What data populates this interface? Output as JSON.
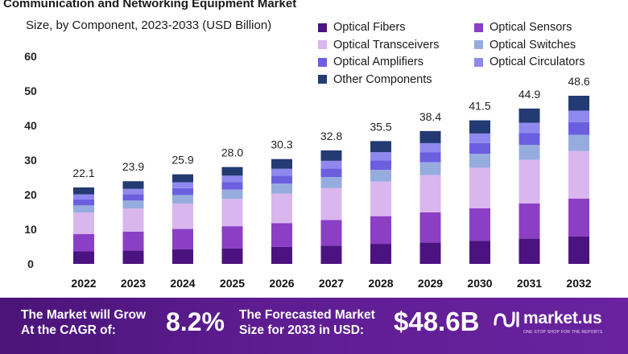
{
  "chart_data": {
    "type": "bar",
    "stacked": true,
    "title": "Communication and Networking Equipment Market",
    "subtitle": "Size, by Component, 2023-2033 (USD Billion)",
    "categories": [
      "2022",
      "2023",
      "2024",
      "2025",
      "2026",
      "2027",
      "2028",
      "2029",
      "2030",
      "2031",
      "2032"
    ],
    "totals": [
      22.1,
      23.9,
      25.9,
      28.0,
      30.3,
      32.8,
      35.5,
      38.4,
      41.5,
      44.9,
      48.6
    ],
    "total_labels": [
      "22.1",
      "23.9",
      "25.9",
      "28.0",
      "30.3",
      "32.8",
      "35.5",
      "38.4",
      "41.5",
      "44.9",
      "48.6"
    ],
    "ylim": [
      0,
      60
    ],
    "yticks": [
      "0",
      "10",
      "20",
      "30",
      "40",
      "50",
      "60"
    ],
    "legend_position": "top-right",
    "series": [
      {
        "name": "Optical Fibers",
        "color": "#4b1380",
        "values": [
          3.6,
          3.9,
          4.2,
          4.5,
          4.9,
          5.3,
          5.8,
          6.2,
          6.7,
          7.3,
          7.9
        ]
      },
      {
        "name": "Optical Sensors",
        "color": "#8b3fc4",
        "values": [
          5.0,
          5.4,
          5.9,
          6.4,
          6.9,
          7.4,
          8.0,
          8.7,
          9.4,
          10.2,
          11.0
        ]
      },
      {
        "name": "Optical Transceivers",
        "color": "#d9b6ee",
        "values": [
          6.2,
          6.7,
          7.3,
          7.9,
          8.5,
          9.2,
          10.0,
          10.8,
          11.7,
          12.6,
          13.7
        ]
      },
      {
        "name": "Optical Switches",
        "color": "#97acde",
        "values": [
          2.1,
          2.3,
          2.5,
          2.7,
          2.9,
          3.2,
          3.4,
          3.7,
          4.0,
          4.3,
          4.7
        ]
      },
      {
        "name": "Optical Amplifiers",
        "color": "#6b5fe0",
        "values": [
          1.7,
          1.8,
          2.0,
          2.1,
          2.3,
          2.5,
          2.7,
          2.9,
          3.1,
          3.4,
          3.7
        ]
      },
      {
        "name": "Optical Circulators",
        "color": "#8f89ee",
        "values": [
          1.5,
          1.6,
          1.7,
          1.9,
          2.0,
          2.2,
          2.4,
          2.6,
          2.8,
          3.0,
          3.3
        ]
      },
      {
        "name": "Other Components",
        "color": "#233a72",
        "values": [
          2.0,
          2.2,
          2.3,
          2.5,
          2.8,
          3.0,
          3.2,
          3.5,
          3.8,
          4.1,
          4.3
        ]
      }
    ]
  },
  "footer": {
    "grow_line1": "The Market will Grow",
    "grow_line2": "At the CAGR of:",
    "cagr": "8.2%",
    "forecast_line1": "The Forecasted Market",
    "forecast_line2": "Size for 2033 in USD:",
    "forecast_value": "$48.6B",
    "brand_name": "market.us",
    "brand_tagline": "ONE STOP SHOP FOR THE REPORTS"
  }
}
